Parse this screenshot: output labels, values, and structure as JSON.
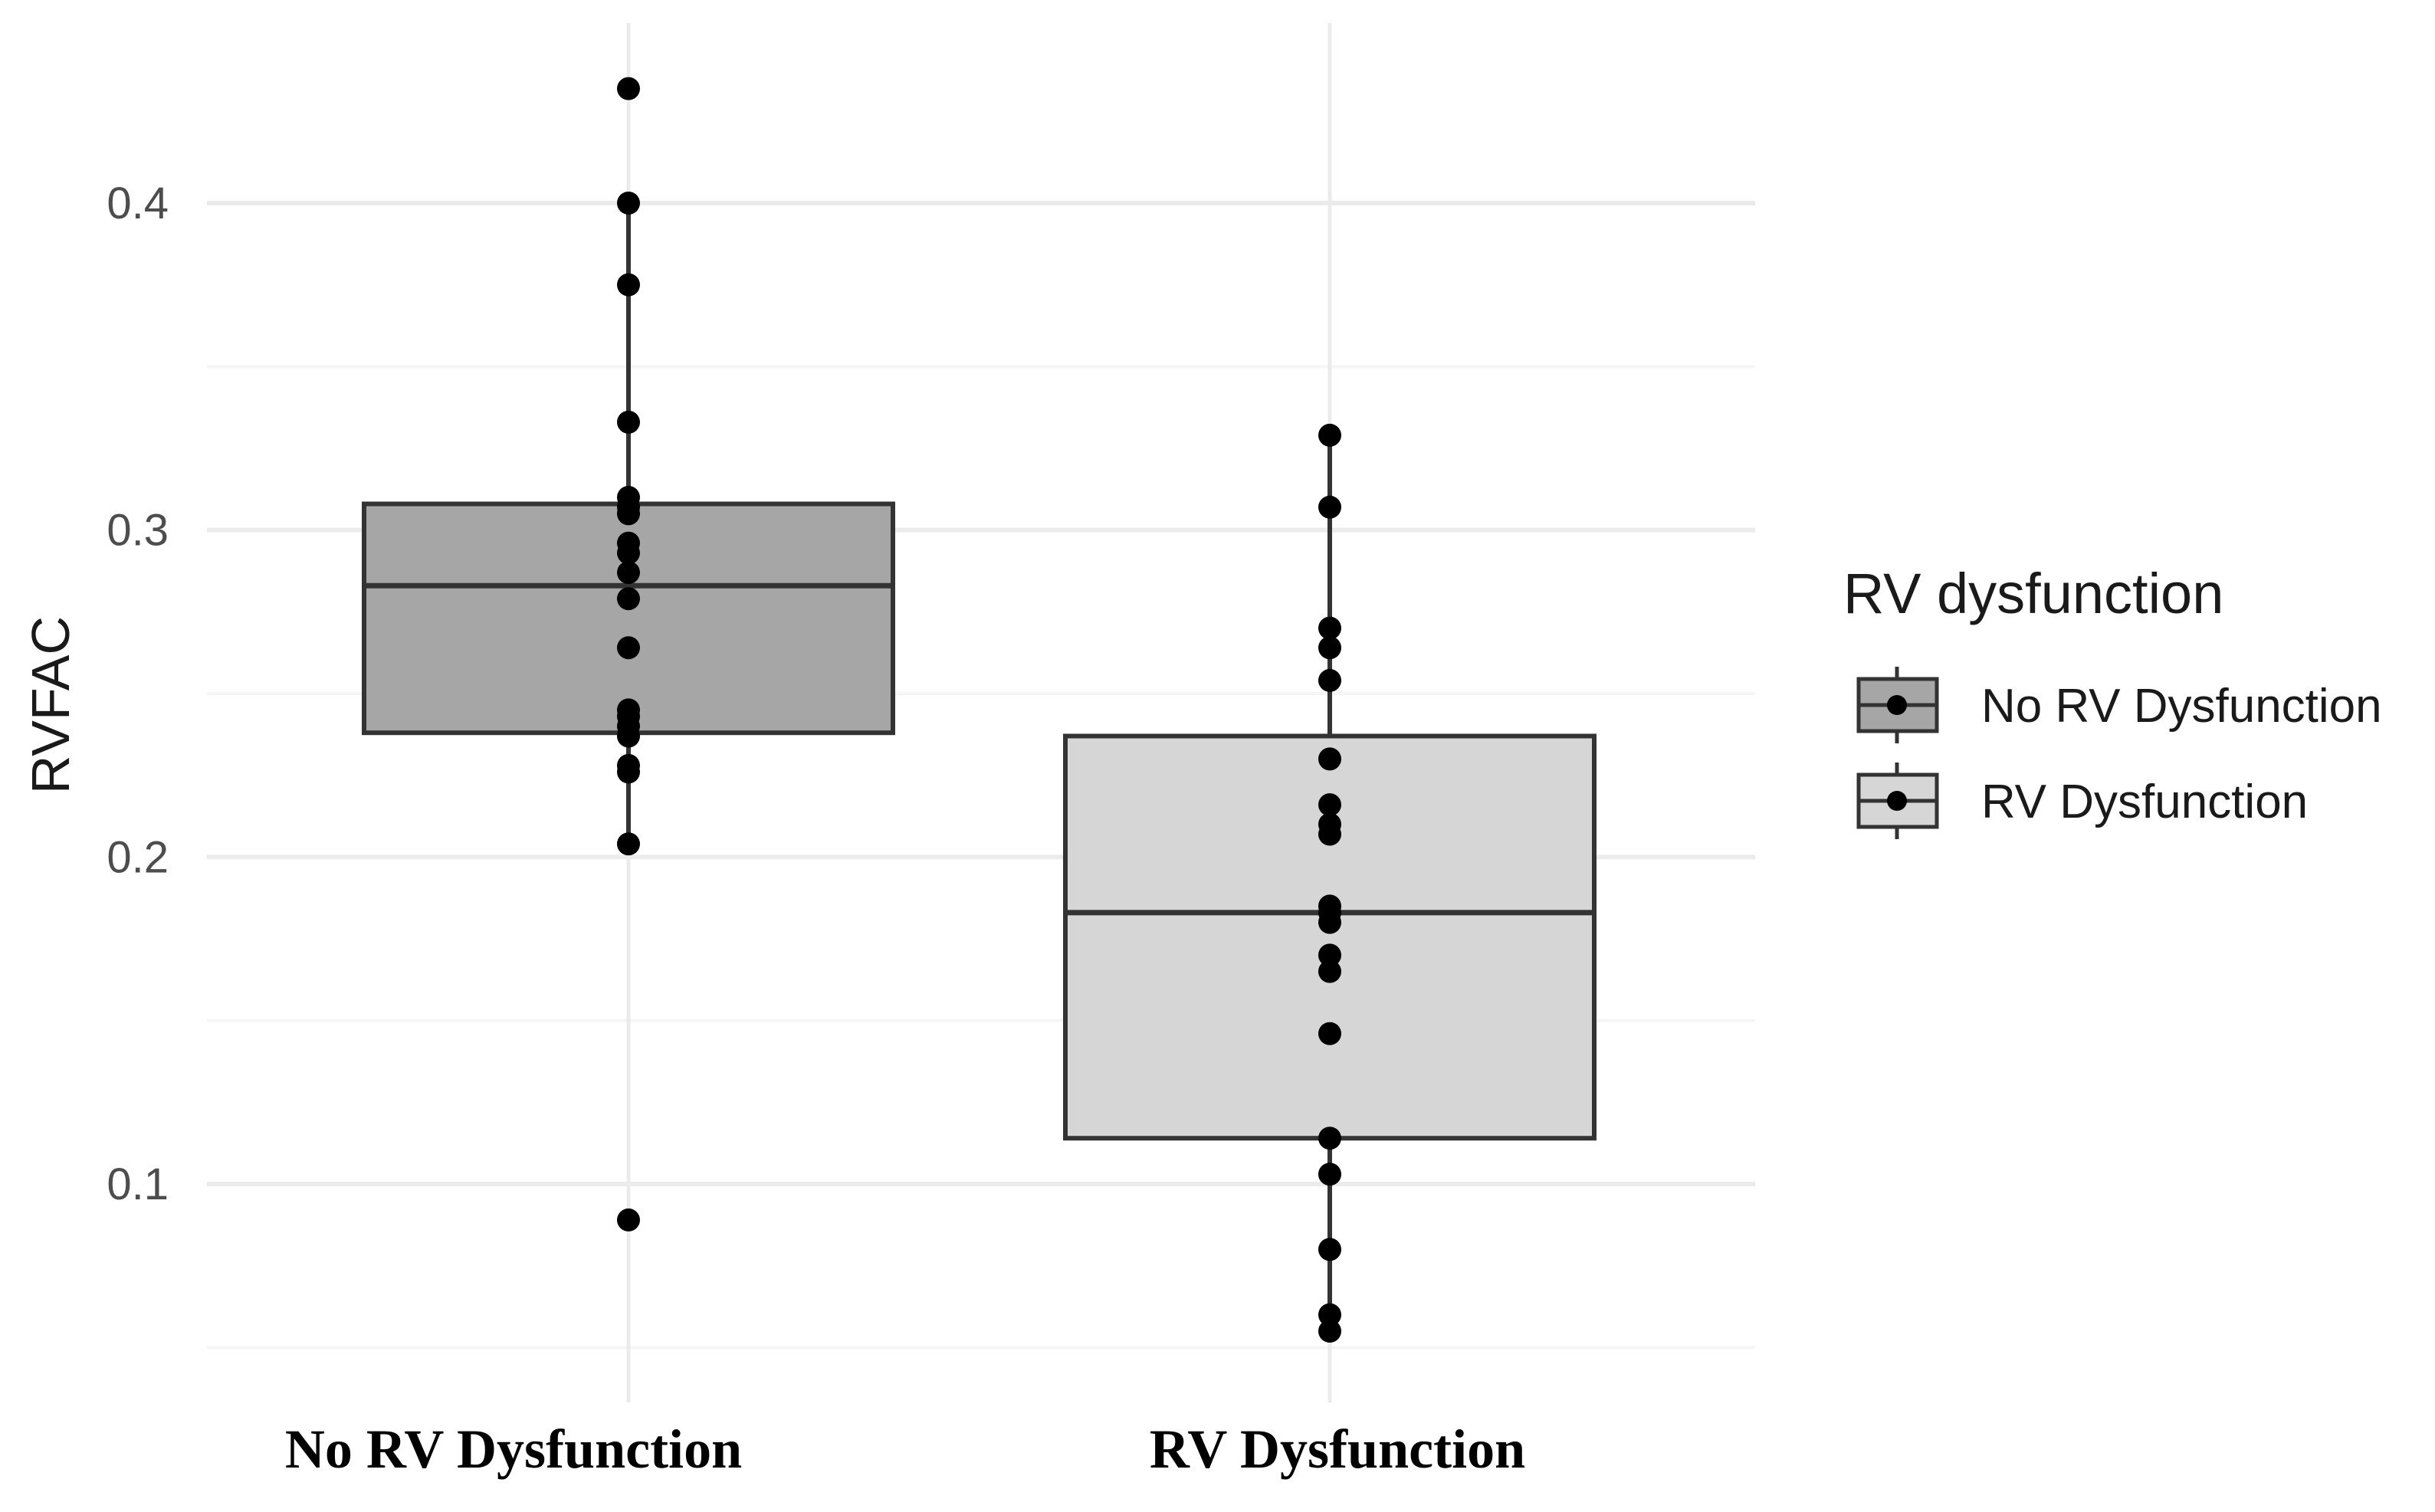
{
  "chart_data": {
    "type": "boxplot",
    "title": "",
    "xlabel": "",
    "ylabel": "RVFAC",
    "ylim": [
      0.05,
      0.44
    ],
    "y_ticks": [
      0.1,
      0.2,
      0.3,
      0.4
    ],
    "y_tick_labels": [
      "0.1",
      "0.2",
      "0.3",
      "0.4"
    ],
    "y_minor_ticks": [
      0.05,
      0.15,
      0.25,
      0.35
    ],
    "grid": true,
    "categories": [
      "No RV Dysfunction",
      "RV Dysfunction"
    ],
    "legend": {
      "title": "RV dysfunction",
      "position": "right",
      "entries": [
        "No RV Dysfunction",
        "RV Dysfunction"
      ]
    },
    "series": [
      {
        "name": "No RV Dysfunction",
        "fill": "#a6a6a6",
        "box": {
          "whisker_low": 0.204,
          "q1": 0.238,
          "median": 0.283,
          "q3": 0.308,
          "whisker_high": 0.4
        },
        "points": [
          0.435,
          0.4,
          0.375,
          0.333,
          0.31,
          0.307,
          0.305,
          0.296,
          0.293,
          0.287,
          0.279,
          0.264,
          0.245,
          0.243,
          0.24,
          0.237,
          0.228,
          0.226,
          0.204,
          0.089
        ]
      },
      {
        "name": "RV Dysfunction",
        "fill": "#d6d6d6",
        "box": {
          "whisker_low": 0.055,
          "q1": 0.114,
          "median": 0.183,
          "q3": 0.237,
          "whisker_high": 0.329
        },
        "points": [
          0.329,
          0.307,
          0.27,
          0.264,
          0.254,
          0.23,
          0.216,
          0.21,
          0.207,
          0.185,
          0.183,
          0.18,
          0.17,
          0.165,
          0.146,
          0.114,
          0.103,
          0.08,
          0.06,
          0.055
        ]
      }
    ]
  },
  "colors": {
    "box_stroke": "#333333",
    "grid_major": "#ebebeb",
    "grid_minor": "#f5f5f5",
    "point": "#000000"
  }
}
